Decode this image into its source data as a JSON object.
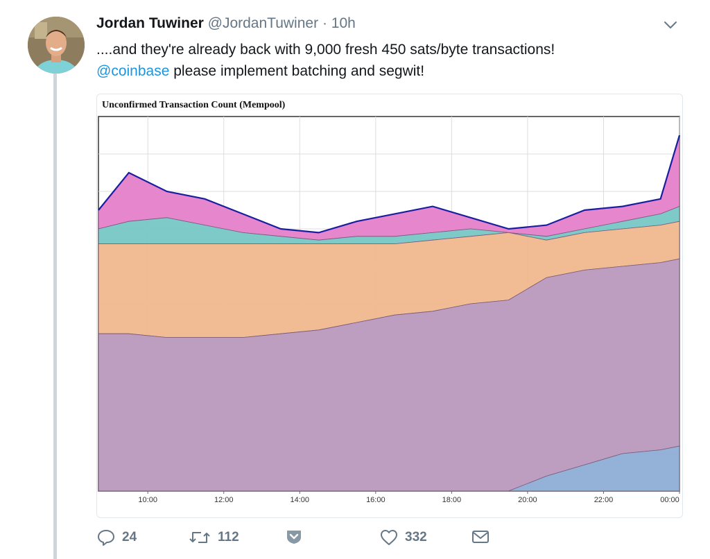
{
  "tweet": {
    "author_name": "Jordan Tuwiner",
    "author_handle": "@JordanTuwiner",
    "separator": "·",
    "time": "10h",
    "text_line1": "....and they're already back with 9,000 fresh 450 sats/byte transactions!",
    "mention": "@coinbase",
    "text_line2_rest": " please implement batching and segwit!"
  },
  "actions": {
    "reply_count": "24",
    "retweet_count": "112",
    "like_count": "332"
  },
  "icons": {
    "chevron": "chevron-down-icon",
    "reply": "reply-icon",
    "retweet": "retweet-icon",
    "analytics": "analytics-icon",
    "like": "heart-icon",
    "dm": "envelope-icon"
  },
  "colors": {
    "link": "#1b95e0",
    "muted": "#657786",
    "series_purple": "#b999bd",
    "series_orange": "#f0b78d",
    "series_blue": "#8eadd6",
    "series_pink": "#e57fc9",
    "series_green": "#7cb868",
    "outline": "#1a1f9e"
  },
  "chart_data": {
    "type": "area",
    "title": "Unconfirmed Transaction Count (Mempool)",
    "x_tick_labels": [
      "10:00",
      "12:00",
      "14:00",
      "16:00",
      "18:00",
      "20:00",
      "22:00",
      "00:00"
    ],
    "x_hours": [
      8.7,
      9.5,
      10.5,
      11.5,
      12.5,
      13.5,
      14.5,
      15.5,
      16.5,
      17.5,
      18.5,
      19.5,
      20.5,
      21.5,
      22.5,
      23.5,
      24.0
    ],
    "series": [
      {
        "values": [
          0,
          0,
          0,
          0,
          0,
          0,
          0,
          0,
          0,
          0,
          0,
          0,
          4,
          7,
          10,
          11,
          12
        ]
      },
      {
        "values": [
          42,
          42,
          41,
          41,
          41,
          42,
          43,
          45,
          47,
          48,
          50,
          51,
          57,
          59,
          60,
          61,
          62
        ]
      },
      {
        "values": [
          66,
          66,
          66,
          66,
          66,
          66,
          66,
          66,
          66,
          67,
          68,
          69,
          67,
          69,
          70,
          71,
          72
        ]
      },
      {
        "values": [
          70,
          72,
          73,
          71,
          69,
          68,
          67,
          68,
          68,
          69,
          70,
          69,
          68,
          70,
          72,
          74,
          76
        ]
      },
      {
        "values": [
          75,
          85,
          80,
          78,
          74,
          70,
          69,
          72,
          74,
          76,
          73,
          70,
          71,
          75,
          76,
          78,
          95
        ]
      }
    ],
    "ylim": [
      0,
      100
    ]
  }
}
